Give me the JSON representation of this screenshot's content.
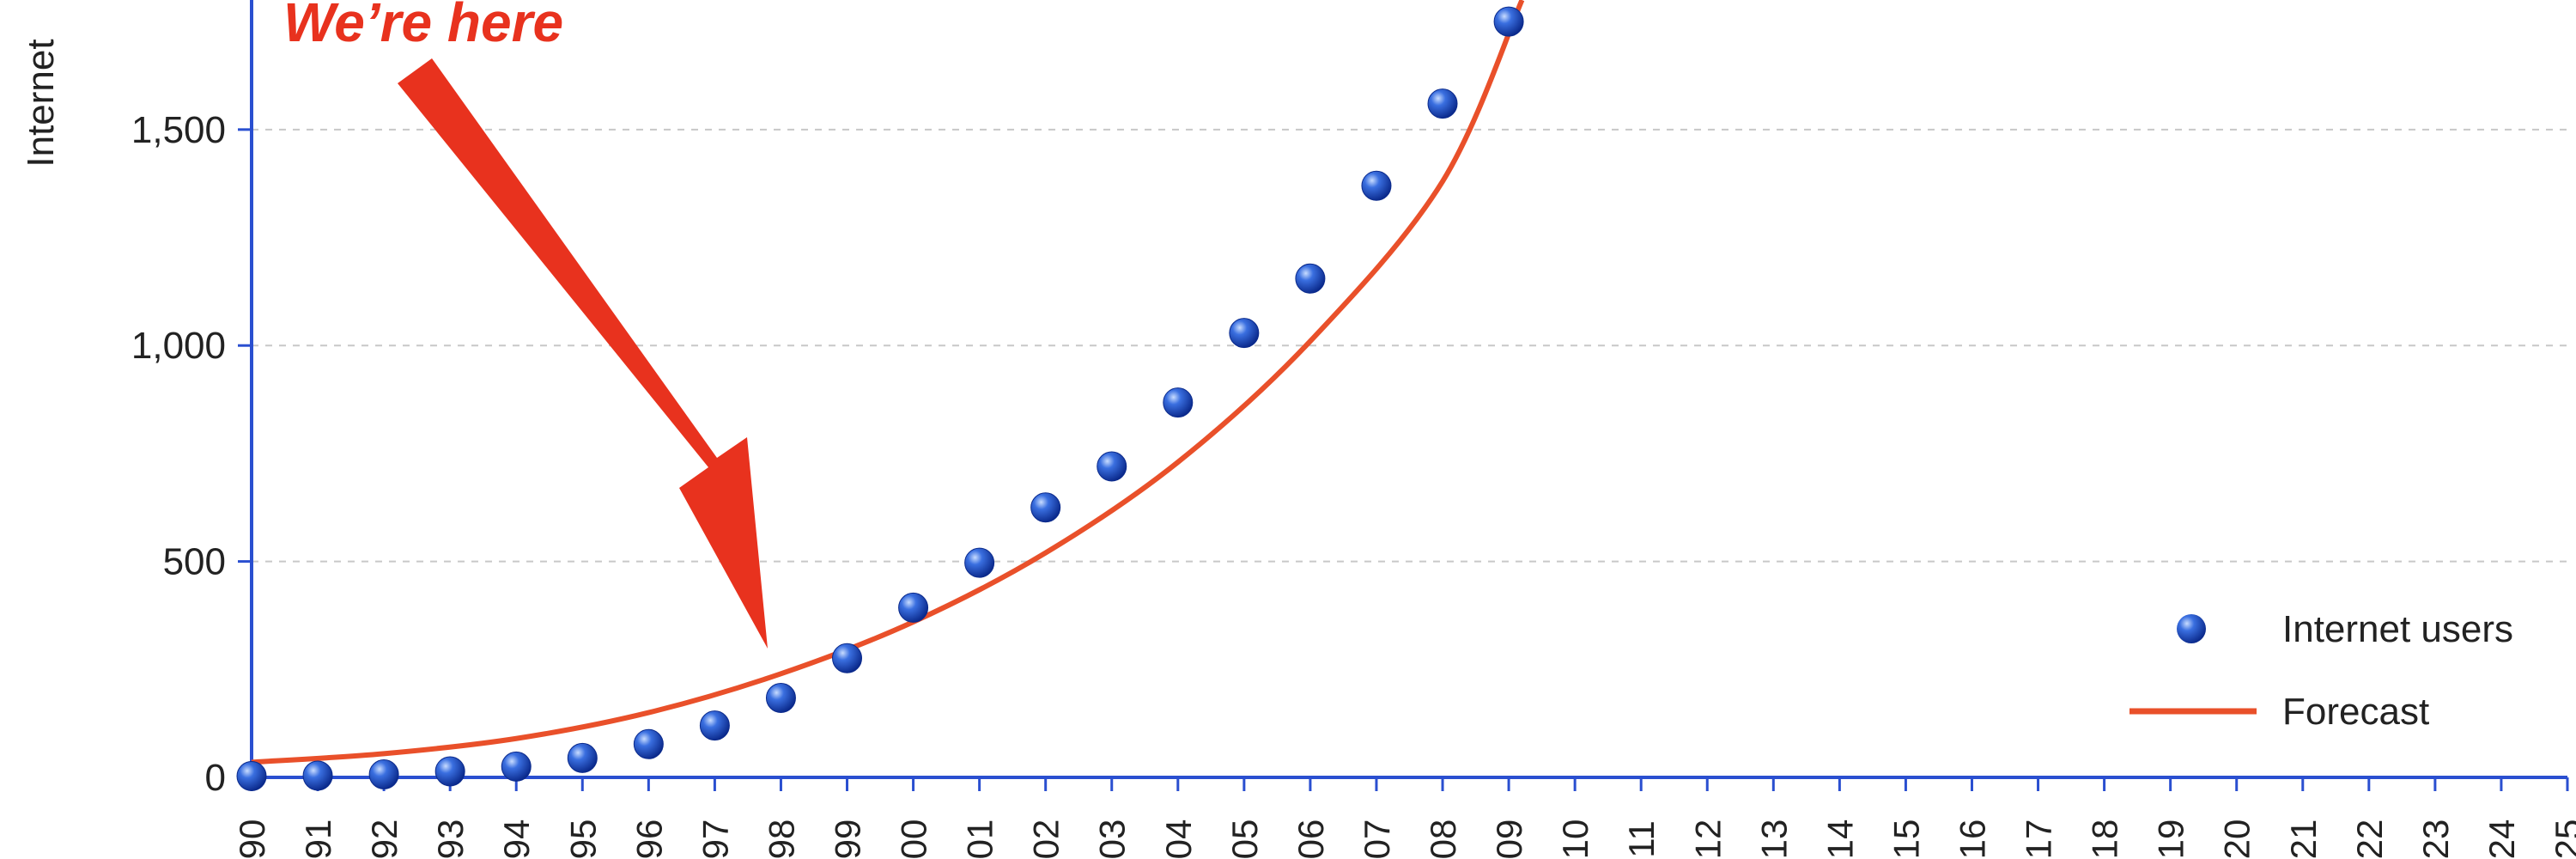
{
  "chart_data": {
    "type": "scatter",
    "ylabel": "Internet",
    "x_tick_labels": [
      "90",
      "91",
      "92",
      "93",
      "94",
      "95",
      "96",
      "97",
      "98",
      "99",
      "00",
      "01",
      "02",
      "03",
      "04",
      "05",
      "06",
      "07",
      "08",
      "09",
      "10",
      "11",
      "12",
      "13",
      "14",
      "15",
      "16",
      "17",
      "18",
      "19",
      "20",
      "21",
      "22",
      "23",
      "24",
      "25"
    ],
    "y_ticks": [
      0,
      500,
      1000,
      1500
    ],
    "y_tick_labels": [
      "0",
      "500",
      "1,000",
      "1,500"
    ],
    "xlim": [
      1990,
      2025
    ],
    "ylim": [
      0,
      1800
    ],
    "grid": "horizontal-dashed",
    "series": [
      {
        "name": "Internet users",
        "kind": "points",
        "color": "#1f4fc8",
        "x": [
          1990,
          1991,
          1992,
          1993,
          1994,
          1995,
          1996,
          1997,
          1998,
          1999,
          2000,
          2001,
          2002,
          2003,
          2004,
          2005,
          2006,
          2007,
          2008,
          2009
        ],
        "values": [
          3,
          4,
          7,
          14,
          25,
          45,
          77,
          120,
          184,
          276,
          393,
          497,
          625,
          720,
          868,
          1029,
          1155,
          1370,
          1560,
          1750
        ]
      },
      {
        "name": "Forecast",
        "kind": "line",
        "color": "#e9502a",
        "x": [
          1990,
          1992,
          1994,
          1996,
          1998,
          2000,
          2002,
          2004,
          2006,
          2008,
          2009.2
        ],
        "values": [
          35,
          55,
          90,
          150,
          240,
          360,
          520,
          730,
          1010,
          1380,
          1800
        ]
      }
    ],
    "legend": {
      "position": "bottom-right",
      "items": [
        {
          "label": "Internet users",
          "marker": "sphere"
        },
        {
          "label": "Forecast",
          "marker": "line"
        }
      ]
    },
    "annotations": [
      {
        "text": "We’re here",
        "color": "#e8321e",
        "arrow_to": {
          "x": 1998,
          "y": 184
        }
      }
    ]
  }
}
